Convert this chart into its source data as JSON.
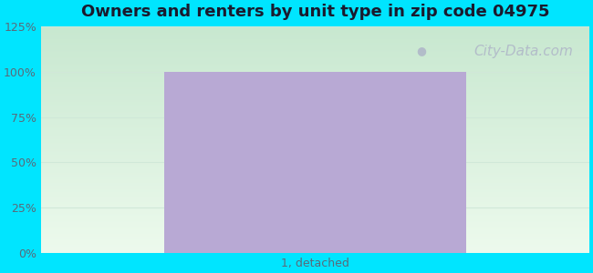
{
  "title": "Owners and renters by unit type in zip code 04975",
  "categories": [
    "1, detached"
  ],
  "values": [
    100
  ],
  "bar_color": "#b8a9d4",
  "bar_width": 0.55,
  "ylim": [
    0,
    125
  ],
  "yticks": [
    0,
    25,
    50,
    75,
    100,
    125
  ],
  "ytick_labels": [
    "0%",
    "25%",
    "50%",
    "75%",
    "100%",
    "125%"
  ],
  "title_fontsize": 13,
  "tick_fontsize": 9,
  "bg_color_outer": "#00e5ff",
  "bg_top_color": "#c8e8d0",
  "bg_bottom_color": "#edfaed",
  "gridline_color": "#d0e8d8",
  "watermark_text": "City-Data.com",
  "watermark_color": "#b0b8c8",
  "watermark_fontsize": 11,
  "tick_label_color": "#5a6a7a"
}
